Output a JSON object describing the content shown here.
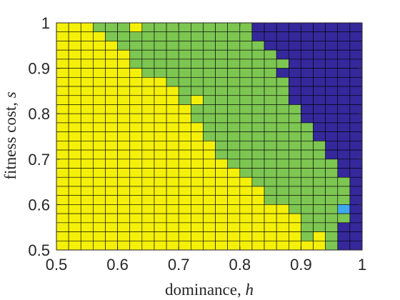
{
  "chart_data": {
    "type": "heatmap",
    "title": "",
    "xlabel": "dominance, ",
    "xlabel_var": "h",
    "ylabel": "fitness cost, ",
    "ylabel_var": "s",
    "xlim": [
      0.5,
      1
    ],
    "ylim": [
      0.5,
      1
    ],
    "x_ticks": [
      0.5,
      0.6,
      0.7,
      0.8,
      0.9,
      1
    ],
    "x_tick_labels": [
      "0.5",
      "0.6",
      "0.7",
      "0.8",
      "0.9",
      "1"
    ],
    "y_ticks": [
      0.5,
      0.6,
      0.7,
      0.8,
      0.9,
      1
    ],
    "y_tick_labels": [
      "0.5",
      "0.6",
      "0.7",
      "0.8",
      "0.9",
      "1"
    ],
    "grid_step": 0.02,
    "n_cols": 25,
    "n_rows": 25,
    "categories": [
      {
        "code": 1,
        "color": "#f5f00a"
      },
      {
        "code": 2,
        "color": "#7dc652"
      },
      {
        "code": 3,
        "color": "#3fa9f0"
      },
      {
        "code": 4,
        "color": "#35289b"
      }
    ],
    "row_order": "top-to-bottom (first row is s = 0.98–1.00)",
    "rows": [
      "1112221222222222444444444",
      "1111222222222222444444444",
      "1111122222222222244444444",
      "1111112222222222224444444",
      "1111112222222222222444444",
      "1111111222222222224444444",
      "1111111112222222222444444",
      "1111111111222222222444444",
      "1111111111212222222444444",
      "1111111111122222222244444",
      "1111111111122222222244444",
      "1111111111112222222224444",
      "1111111111112222222224444",
      "1111111111111222222222444",
      "1111111111111222222222444",
      "1111111111111122222222244",
      "1111111111111112222222244",
      "1111111111111111222222224",
      "1111111111111111122222224",
      "1111111111111111122222224",
      "1111111111111111111222234",
      "1111111111111111111122224",
      "1111111111111111111122244",
      "1111111111111111111121244",
      "1111111111111111111111244"
    ]
  },
  "colors": {
    "cell_border": "#000000",
    "axis": "#262626",
    "background": "#ffffff"
  }
}
